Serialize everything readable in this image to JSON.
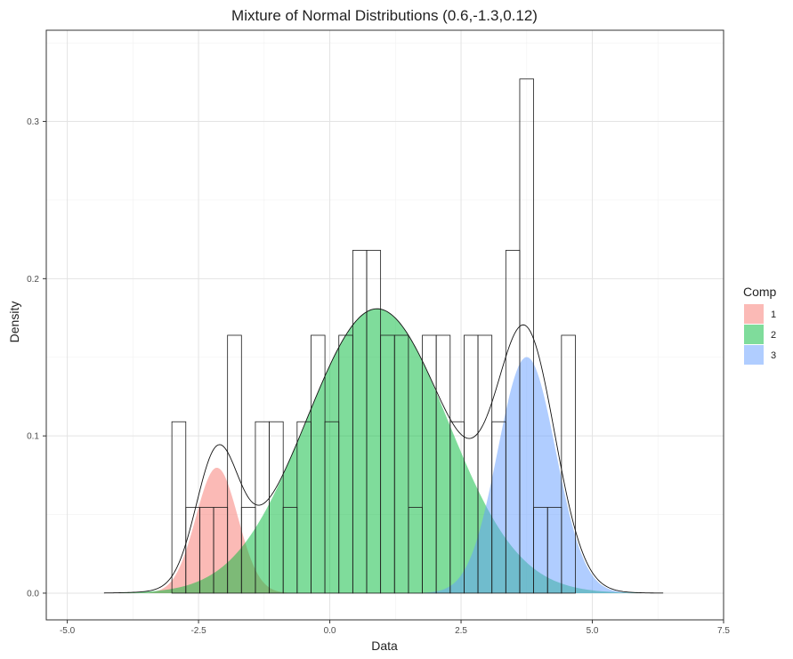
{
  "chart_data": {
    "type": "histogram-density",
    "title": "Mixture of Normal Distributions (0.6,-1.3,0.12)",
    "xlabel": "Data",
    "ylabel": "Density",
    "xlim": [
      -5.4,
      7.5
    ],
    "ylim": [
      -0.017,
      0.358
    ],
    "x_ticks": [
      -5,
      -2.5,
      0,
      2.5,
      5,
      7.5
    ],
    "x_tick_labels": [
      "-5.0",
      "-2.5",
      "0.0",
      "2.5",
      "5.0",
      "7.5"
    ],
    "y_ticks": [
      0,
      0.1,
      0.2,
      0.3
    ],
    "y_tick_labels": [
      "0.0",
      "0.1",
      "0.2",
      "0.3"
    ],
    "grid": true,
    "legend": {
      "title": "Comp",
      "placement": "right",
      "entries": [
        {
          "label": "1",
          "color": "#F8766D"
        },
        {
          "label": "2",
          "color": "#00BA38"
        },
        {
          "label": "3",
          "color": "#619CFF"
        }
      ]
    },
    "histogram": {
      "bin_width": 0.265,
      "bins": [
        {
          "x": -2.875,
          "density": 0.109
        },
        {
          "x": -2.61,
          "density": 0.0545
        },
        {
          "x": -2.345,
          "density": 0.0545
        },
        {
          "x": -2.08,
          "density": 0.0545
        },
        {
          "x": -1.815,
          "density": 0.164
        },
        {
          "x": -1.55,
          "density": 0.0545
        },
        {
          "x": -1.285,
          "density": 0.109
        },
        {
          "x": -1.02,
          "density": 0.109
        },
        {
          "x": -0.755,
          "density": 0.0545
        },
        {
          "x": -0.49,
          "density": 0.109
        },
        {
          "x": -0.225,
          "density": 0.164
        },
        {
          "x": 0.04,
          "density": 0.109
        },
        {
          "x": 0.305,
          "density": 0.164
        },
        {
          "x": 0.57,
          "density": 0.218
        },
        {
          "x": 0.835,
          "density": 0.218
        },
        {
          "x": 1.1,
          "density": 0.164
        },
        {
          "x": 1.365,
          "density": 0.164
        },
        {
          "x": 1.63,
          "density": 0.0545
        },
        {
          "x": 1.895,
          "density": 0.164
        },
        {
          "x": 2.16,
          "density": 0.164
        },
        {
          "x": 2.425,
          "density": 0.109
        },
        {
          "x": 2.69,
          "density": 0.164
        },
        {
          "x": 2.955,
          "density": 0.164
        },
        {
          "x": 3.22,
          "density": 0.109
        },
        {
          "x": 3.485,
          "density": 0.218
        },
        {
          "x": 3.75,
          "density": 0.327
        },
        {
          "x": 4.015,
          "density": 0.0545
        },
        {
          "x": 4.28,
          "density": 0.0545
        },
        {
          "x": 4.545,
          "density": 0.164
        }
      ]
    },
    "components": [
      {
        "name": "1",
        "mean": -2.15,
        "sd": 0.4,
        "weight": 0.08,
        "color": "#F8766D"
      },
      {
        "name": "2",
        "mean": 0.9,
        "sd": 1.35,
        "weight": 0.612,
        "color": "#00BA38"
      },
      {
        "name": "3",
        "mean": 3.75,
        "sd": 0.55,
        "weight": 0.207,
        "color": "#619CFF"
      }
    ],
    "mixture_curve_range": [
      -4.3,
      6.35
    ]
  }
}
